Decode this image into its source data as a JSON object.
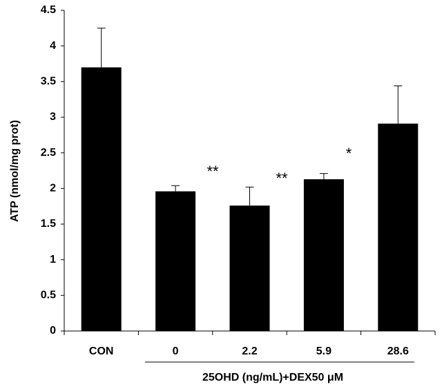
{
  "chart_data": {
    "type": "bar",
    "ylabel": "ATP (nmol/mg prot)",
    "categories": [
      "CON",
      "0",
      "2.2",
      "5.9",
      "28.6"
    ],
    "values": [
      3.7,
      1.96,
      1.76,
      2.13,
      2.91
    ],
    "errors": [
      0.55,
      0.08,
      0.26,
      0.08,
      0.53
    ],
    "color": "#000000",
    "ylim": [
      0,
      4.5
    ],
    "yticks": [
      0,
      0.5,
      1,
      1.5,
      2,
      2.5,
      3,
      3.5,
      4,
      4.5
    ],
    "annotations": [
      "**",
      "**",
      "*"
    ],
    "group_label": "25OHD (ng/mL)+DEX50 μM"
  }
}
